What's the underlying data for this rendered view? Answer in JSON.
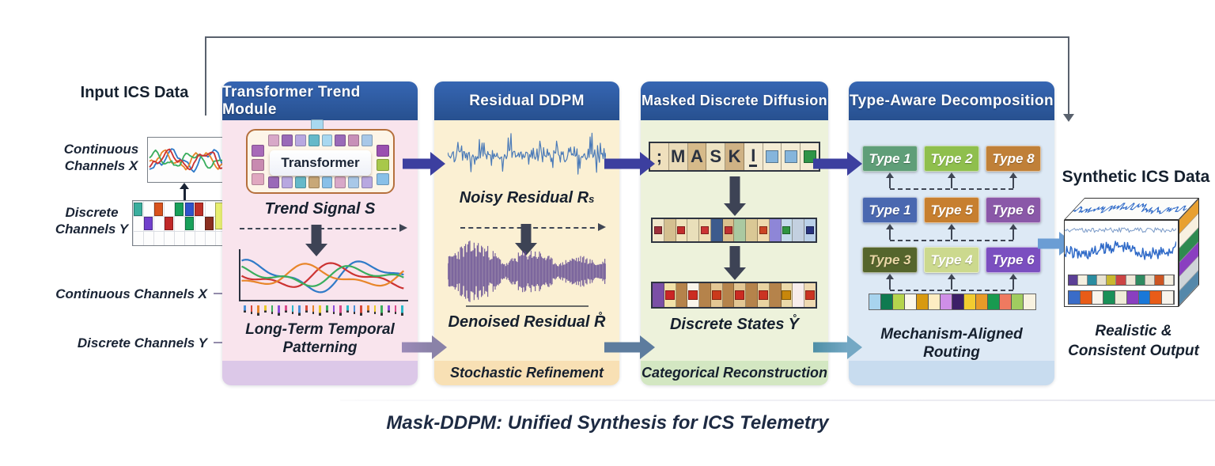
{
  "header_color": "#2d5da9",
  "input": {
    "heading": "Input ICS Data",
    "continuous_line1": "Continuous",
    "continuous_line2": "Channels X",
    "discrete_line1": "Discrete",
    "discrete_line2": "Channels Y",
    "grid_cells": [
      {
        "col": 0,
        "row": 1,
        "color": "#3aae9e"
      },
      {
        "col": 1,
        "row": 2,
        "color": "#7040cc"
      },
      {
        "col": 2,
        "row": 1,
        "color": "#d9531e"
      },
      {
        "col": 3,
        "row": 2,
        "color": "#c02828"
      },
      {
        "col": 4,
        "row": 1,
        "color": "#18a05a"
      },
      {
        "col": 5,
        "row": 1,
        "color": "#2f54cc"
      },
      {
        "col": 5,
        "row": 2,
        "color": "#18a05a"
      },
      {
        "col": 6,
        "row": 1,
        "color": "#c03028"
      },
      {
        "col": 7,
        "row": 2,
        "color": "#8a2f20"
      },
      {
        "col": 8,
        "row": 1,
        "color": "#e8ef70",
        "h": 2
      },
      {
        "col": 9,
        "row": 2,
        "color": "#2f54cc"
      },
      {
        "col": 9,
        "row": 1,
        "color": "#6a35d0"
      }
    ]
  },
  "left_labels": {
    "continuous": "Continuous Channels X",
    "discrete": "Discrete Channels Y"
  },
  "panels": {
    "trend": {
      "title": "Transformer Trend Module",
      "box_label": "Transformer",
      "signal_caption": "Trend Signal S",
      "pattern_line1": "Long-Term Temporal",
      "pattern_line2": "Patterning",
      "colors": {
        "body": "#f9e4ed",
        "footer": "#dcc8e8",
        "box_border": "#b5703d",
        "box_bg": "#fdf5e8"
      },
      "float_square": "#a8d8f0",
      "top_squares": [
        "#d8a8c8",
        "#9a6ab8",
        "#b8a8e0",
        "#65b9c9",
        "#a8d8f0",
        "#9a6ab8",
        "#c890b8",
        "#a8c8e8"
      ],
      "bottom_squares": [
        "#9a6ab8",
        "#b8a8e0",
        "#65b9c9",
        "#c8a878",
        "#88c0e8",
        "#d8a8c8",
        "#a8c8e8",
        "#b8a8e0"
      ],
      "left_squares": [
        "#a86ab8",
        "#c88ab0",
        "#e0a8c0"
      ],
      "right_squares": [
        "#9a50b0",
        "#a8c84a",
        "#88c0e8"
      ],
      "tick_colors": [
        "#4a90d9",
        "#d94a3a",
        "#e8862a",
        "#e8c82a",
        "#3aae5e",
        "#8a4ad9",
        "#d94a8a",
        "#2ab8c8"
      ]
    },
    "ddpm": {
      "title": "Residual DDPM",
      "noisy_caption": "Noisy Residual R",
      "noisy_sub": "s",
      "denoised_caption": "Denoised Residual R̊",
      "footer": "Stochastic Refinement",
      "colors": {
        "body": "#fbf0d3",
        "footer": "#f8e0b4",
        "noisy_wave": "#4a7ab8",
        "denoised_wave": "#5c4490"
      }
    },
    "masked": {
      "title": "Masked Discrete Diffusion",
      "states_caption": "Discrete States Y̊",
      "footer": "Categorical Reconstruction",
      "colors": {
        "body": "#edf2db",
        "footer": "#d3e7c2"
      },
      "mask_row": [
        {
          "text": ";",
          "bg": "#efe0bd"
        },
        {
          "text": "M",
          "bg": "#eadbb8"
        },
        {
          "text": "A",
          "bg": "#d6ba8a"
        },
        {
          "text": "S",
          "bg": "#eee3c2"
        },
        {
          "text": "K",
          "bg": "#cfb285"
        },
        {
          "text": "I",
          "bg": "#f2ead2",
          "u": true
        },
        {
          "sq": "#85b5dc",
          "bg": "#f4ecd4"
        },
        {
          "sq": "#85b5dc",
          "bg": "#f4ecd4"
        },
        {
          "sq": "#2f9447",
          "bg": "#f4ecd4"
        }
      ],
      "mid_row": [
        {
          "bg": "#f1e7ca",
          "sq": "#9e2f3a"
        },
        {
          "bg": "#d4bf90"
        },
        {
          "bg": "#efe2bb",
          "sq": "#c22d2d"
        },
        {
          "bg": "#e9dfba"
        },
        {
          "bg": "#eedfb6",
          "sq": "#cb3434"
        },
        {
          "bg": "#3d5b8d"
        },
        {
          "bg": "#d9c08d",
          "sq": "#bf3030"
        },
        {
          "bg": "#aac9a1"
        },
        {
          "bg": "#dac895"
        },
        {
          "bg": "#efdaad",
          "sq": "#cb4423"
        },
        {
          "bg": "#8e86d7"
        },
        {
          "bg": "#c4daeb",
          "sq": "#2f9440"
        },
        {
          "bg": "#c3d0e0"
        },
        {
          "bg": "#bad0e9",
          "sq": "#28337f"
        }
      ],
      "bottom_row": [
        {
          "bg": "#7b4fa6"
        },
        {
          "bg": "#f2e2a9",
          "sq": "#cb2525"
        },
        {
          "bg": "#b5834b"
        },
        {
          "bg": "#faf5eb",
          "sq": "#cb2b22"
        },
        {
          "bg": "#b5834b"
        },
        {
          "bg": "#e3c794",
          "sq": "#cb3a1b"
        },
        {
          "bg": "#b5834b"
        },
        {
          "bg": "#e3c794",
          "sq": "#cb2b22"
        },
        {
          "bg": "#b5834b"
        },
        {
          "bg": "#e9d3a1",
          "sq": "#cb3322"
        },
        {
          "bg": "#b5834b"
        },
        {
          "bg": "#ebd9a9",
          "sq": "#c8870b"
        },
        {
          "bg": "#f8edec"
        },
        {
          "bg": "#efdab1",
          "sq": "#cb3322"
        }
      ]
    },
    "typeaware": {
      "title": "Type-Aware Decomposition",
      "routing_line1": "Mechanism-Aligned",
      "routing_line2": "Routing",
      "colors": {
        "body": "#dde9f5",
        "footer": "#c8dcef"
      },
      "row_top": [
        {
          "label": "Type 1",
          "bg": "#5f9e78"
        },
        {
          "label": "Type 2",
          "bg": "#8fbf4d"
        },
        {
          "label": "Type 8",
          "bg": "#c08038"
        }
      ],
      "row_mid": [
        {
          "label": "Type 1",
          "bg": "#4a68b0"
        },
        {
          "label": "Type 5",
          "bg": "#c77f2f"
        },
        {
          "label": "Type 6",
          "bg": "#8a58a8"
        }
      ],
      "row_bottom": [
        {
          "label": "Type 3",
          "bg": "#55652c",
          "fg": "#e9d6a5"
        },
        {
          "label": "Type 4",
          "bg": "#ccd98e"
        },
        {
          "label": "Type 6",
          "bg": "#7b4fc0"
        }
      ],
      "strip": [
        "#a8d4ee",
        "#0f7a50",
        "#b5d44d",
        "#fbf7ea",
        "#d89a10",
        "#fdedc2",
        "#cf8fe8",
        "#3d1f68",
        "#f2cc30",
        "#e89a28",
        "#189a50",
        "#ef7a60",
        "#a0cc60",
        "#f8f2e0"
      ]
    }
  },
  "output": {
    "heading": "Synthetic ICS Data",
    "caption_line1": "Realistic &",
    "caption_line2": "Consistent Output",
    "cube_small_row": [
      "#5b3f96",
      "#f5f0e0",
      "#2a8ca0",
      "#e8e2d0",
      "#c8b830",
      "#cc4444",
      "#f0e8d8",
      "#2f8a60",
      "#e8e0d0",
      "#cc5522",
      "#f5efe0"
    ],
    "cube_big_row": [
      "#3a6cc8",
      "#e85c18",
      "#f8f4ec",
      "#1a9058",
      "#f0ecd8",
      "#8a3fc0",
      "#1a78d8",
      "#e85c18",
      "#f8f4ec"
    ],
    "cube_side": [
      "#e8a030",
      "#f8f0e0",
      "#2f8a50",
      "#8a3fc0",
      "#cfd4d8",
      "#5588aa"
    ]
  },
  "footer_title": "Mask-DDPM: Unified Synthesis for ICS Telemetry"
}
